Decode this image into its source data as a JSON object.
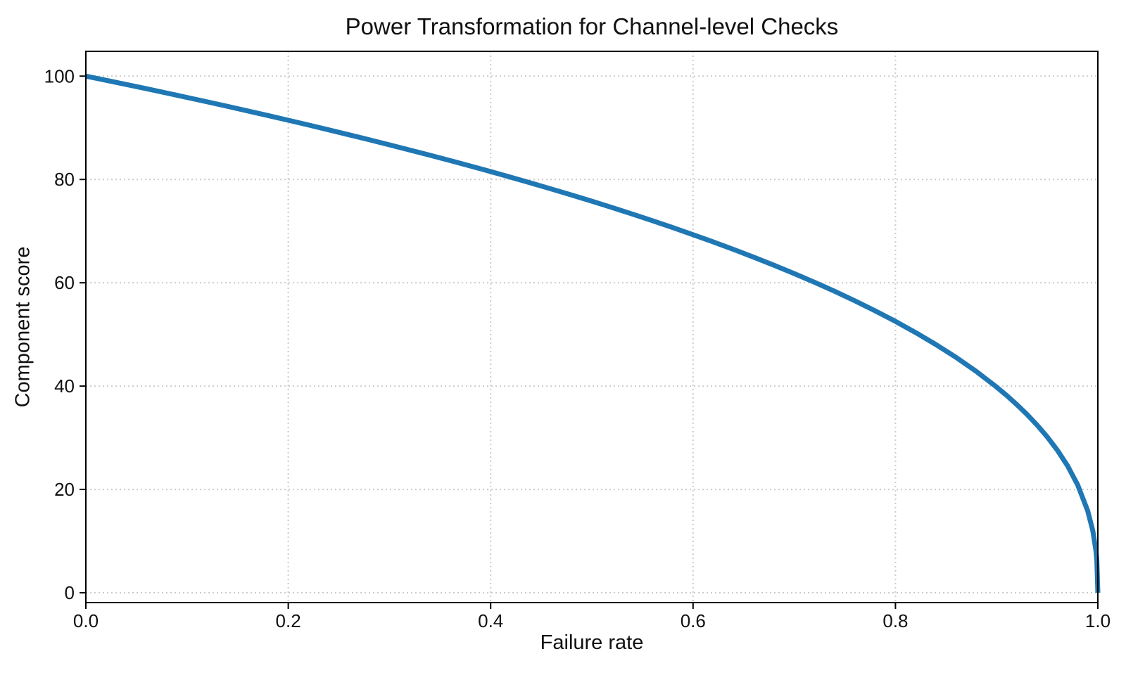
{
  "chart_data": {
    "type": "line",
    "title": "Power Transformation for Channel-level Checks",
    "xlabel": "Failure rate",
    "ylabel": "Component score",
    "xlim": [
      0,
      1
    ],
    "ylim": [
      -1.9,
      104.8
    ],
    "x_ticks": [
      0.0,
      0.2,
      0.4,
      0.6,
      0.8,
      1.0
    ],
    "x_tick_labels": [
      "0.0",
      "0.2",
      "0.4",
      "0.6",
      "0.8",
      "1.0"
    ],
    "y_ticks": [
      0,
      20,
      40,
      60,
      80,
      100
    ],
    "y_tick_labels": [
      "0",
      "20",
      "40",
      "60",
      "80",
      "100"
    ],
    "grid": true,
    "legend": false,
    "line_color": "#1f77b4",
    "grid_color": "#cccccc",
    "axis_color": "#000000",
    "text_color": "#111111",
    "series": [
      {
        "name": "component-score-curve",
        "x": [
          0.0,
          0.02,
          0.04,
          0.06,
          0.08,
          0.1,
          0.12,
          0.14,
          0.16,
          0.18,
          0.2,
          0.22,
          0.24,
          0.26,
          0.28,
          0.3,
          0.32,
          0.34,
          0.36,
          0.38,
          0.4,
          0.42,
          0.44,
          0.46,
          0.48,
          0.5,
          0.52,
          0.54,
          0.56,
          0.58,
          0.6,
          0.62,
          0.64,
          0.66,
          0.68,
          0.7,
          0.72,
          0.74,
          0.76,
          0.78,
          0.8,
          0.82,
          0.84,
          0.86,
          0.88,
          0.9,
          0.91,
          0.92,
          0.93,
          0.94,
          0.95,
          0.96,
          0.97,
          0.98,
          0.99,
          0.995,
          0.998,
          0.999,
          1.0
        ],
        "y": [
          100.0,
          99.19,
          98.38,
          97.56,
          96.72,
          95.87,
          95.02,
          94.15,
          93.26,
          92.37,
          91.46,
          90.54,
          89.6,
          88.65,
          87.69,
          86.7,
          85.7,
          84.69,
          83.65,
          82.6,
          81.52,
          80.42,
          79.3,
          78.15,
          76.98,
          75.79,
          74.56,
          73.3,
          72.01,
          70.68,
          69.31,
          67.91,
          66.45,
          64.95,
          63.39,
          61.78,
          60.1,
          58.34,
          56.5,
          54.57,
          52.53,
          50.36,
          48.04,
          45.55,
          42.82,
          39.81,
          38.17,
          36.41,
          34.52,
          32.45,
          30.17,
          27.59,
          24.6,
          20.91,
          15.85,
          12.01,
          8.33,
          6.31,
          0.0
        ]
      }
    ]
  }
}
